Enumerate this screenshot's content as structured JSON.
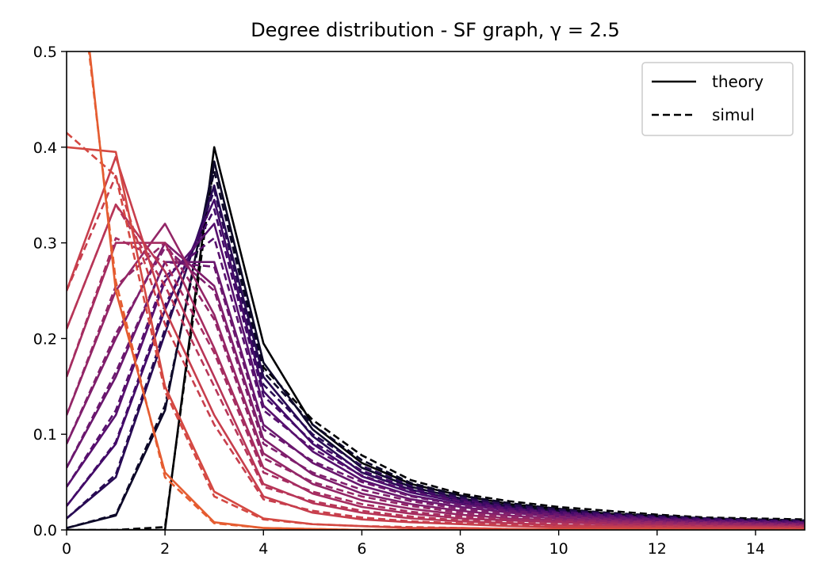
{
  "chart_data": {
    "type": "line",
    "title": "Degree distribution - SF graph, γ = 2.5",
    "xlabel": "",
    "ylabel": "",
    "xlim": [
      0,
      15
    ],
    "ylim": [
      0,
      0.5
    ],
    "xticks": [
      "0",
      "2",
      "4",
      "6",
      "8",
      "10",
      "12",
      "14"
    ],
    "yticks": [
      "0.0",
      "0.1",
      "0.2",
      "0.3",
      "0.4",
      "0.5"
    ],
    "grid": false,
    "legend": {
      "position": "upper right",
      "entries": [
        {
          "label": "theory",
          "style": "solid",
          "color": "#000000"
        },
        {
          "label": "simul",
          "style": "dashed",
          "color": "#000000"
        }
      ]
    },
    "colormap": "inferno",
    "x": [
      0,
      1,
      2,
      3,
      4,
      5,
      6,
      7,
      8,
      9,
      10,
      11,
      12,
      13,
      14,
      15
    ],
    "series": [
      {
        "style": "solid",
        "color": "#000004",
        "values": [
          0,
          0,
          0,
          0.4,
          0.195,
          0.11,
          0.07,
          0.048,
          0.036,
          0.027,
          0.022,
          0.017,
          0.014,
          0.012,
          0.01,
          0.009
        ]
      },
      {
        "style": "dashed",
        "color": "#000004",
        "values": [
          0,
          0,
          0.003,
          0.385,
          0.17,
          0.115,
          0.078,
          0.052,
          0.038,
          0.03,
          0.024,
          0.02,
          0.016,
          0.013,
          0.012,
          0.011
        ]
      },
      {
        "style": "solid",
        "color": "#0d0829",
        "values": [
          0.002,
          0.015,
          0.125,
          0.385,
          0.175,
          0.105,
          0.065,
          0.045,
          0.033,
          0.025,
          0.02,
          0.016,
          0.013,
          0.011,
          0.009,
          0.008
        ]
      },
      {
        "style": "dashed",
        "color": "#0d0829",
        "values": [
          0.002,
          0.016,
          0.13,
          0.375,
          0.165,
          0.11,
          0.073,
          0.049,
          0.036,
          0.028,
          0.022,
          0.018,
          0.015,
          0.012,
          0.011,
          0.01
        ]
      },
      {
        "style": "solid",
        "color": "#280b54",
        "values": [
          0.012,
          0.055,
          0.205,
          0.36,
          0.16,
          0.098,
          0.06,
          0.042,
          0.031,
          0.023,
          0.018,
          0.015,
          0.012,
          0.01,
          0.009,
          0.008
        ]
      },
      {
        "style": "dashed",
        "color": "#280b54",
        "values": [
          0.012,
          0.058,
          0.21,
          0.355,
          0.152,
          0.1,
          0.067,
          0.046,
          0.034,
          0.026,
          0.021,
          0.017,
          0.014,
          0.012,
          0.01,
          0.009
        ]
      },
      {
        "style": "solid",
        "color": "#420a68",
        "values": [
          0.025,
          0.09,
          0.23,
          0.345,
          0.145,
          0.09,
          0.056,
          0.039,
          0.029,
          0.022,
          0.017,
          0.014,
          0.011,
          0.01,
          0.008,
          0.007
        ]
      },
      {
        "style": "dashed",
        "color": "#420a68",
        "values": [
          0.025,
          0.092,
          0.235,
          0.335,
          0.14,
          0.092,
          0.062,
          0.043,
          0.032,
          0.024,
          0.019,
          0.016,
          0.013,
          0.011,
          0.01,
          0.009
        ]
      },
      {
        "style": "solid",
        "color": "#57106e",
        "values": [
          0.045,
          0.12,
          0.26,
          0.32,
          0.13,
          0.082,
          0.052,
          0.036,
          0.027,
          0.02,
          0.016,
          0.013,
          0.011,
          0.009,
          0.008,
          0.007
        ]
      },
      {
        "style": "dashed",
        "color": "#57106e",
        "values": [
          0.045,
          0.125,
          0.265,
          0.305,
          0.125,
          0.085,
          0.057,
          0.04,
          0.03,
          0.022,
          0.018,
          0.015,
          0.012,
          0.01,
          0.009,
          0.008
        ]
      },
      {
        "style": "solid",
        "color": "#6a176e",
        "values": [
          0.065,
          0.16,
          0.28,
          0.28,
          0.11,
          0.07,
          0.046,
          0.032,
          0.024,
          0.018,
          0.014,
          0.012,
          0.01,
          0.008,
          0.007,
          0.006
        ]
      },
      {
        "style": "dashed",
        "color": "#6a176e",
        "values": [
          0.065,
          0.165,
          0.28,
          0.275,
          0.105,
          0.072,
          0.05,
          0.035,
          0.026,
          0.02,
          0.016,
          0.013,
          0.011,
          0.009,
          0.008,
          0.007
        ]
      },
      {
        "style": "solid",
        "color": "#7f1e6c",
        "values": [
          0.09,
          0.2,
          0.3,
          0.255,
          0.095,
          0.058,
          0.038,
          0.027,
          0.02,
          0.015,
          0.012,
          0.01,
          0.008,
          0.007,
          0.006,
          0.005
        ]
      },
      {
        "style": "dashed",
        "color": "#7f1e6c",
        "values": [
          0.09,
          0.205,
          0.295,
          0.25,
          0.09,
          0.06,
          0.042,
          0.03,
          0.022,
          0.017,
          0.014,
          0.011,
          0.009,
          0.008,
          0.007,
          0.006
        ]
      },
      {
        "style": "solid",
        "color": "#932667",
        "values": [
          0.12,
          0.25,
          0.32,
          0.225,
          0.08,
          0.048,
          0.031,
          0.022,
          0.016,
          0.012,
          0.01,
          0.008,
          0.007,
          0.006,
          0.005,
          0.004
        ]
      },
      {
        "style": "dashed",
        "color": "#932667",
        "values": [
          0.12,
          0.255,
          0.3,
          0.22,
          0.075,
          0.05,
          0.035,
          0.025,
          0.018,
          0.014,
          0.011,
          0.009,
          0.008,
          0.007,
          0.006,
          0.005
        ]
      },
      {
        "style": "solid",
        "color": "#a52c60",
        "values": [
          0.16,
          0.3,
          0.3,
          0.19,
          0.065,
          0.038,
          0.024,
          0.017,
          0.012,
          0.01,
          0.008,
          0.006,
          0.005,
          0.004,
          0.004,
          0.003
        ]
      },
      {
        "style": "dashed",
        "color": "#a52c60",
        "values": [
          0.16,
          0.305,
          0.28,
          0.185,
          0.06,
          0.04,
          0.027,
          0.019,
          0.014,
          0.011,
          0.009,
          0.007,
          0.006,
          0.005,
          0.004,
          0.004
        ]
      },
      {
        "style": "solid",
        "color": "#b73557",
        "values": [
          0.21,
          0.34,
          0.27,
          0.16,
          0.048,
          0.028,
          0.018,
          0.012,
          0.009,
          0.007,
          0.005,
          0.004,
          0.004,
          0.003,
          0.003,
          0.002
        ]
      },
      {
        "style": "dashed",
        "color": "#b73557",
        "values": [
          0.21,
          0.34,
          0.255,
          0.15,
          0.045,
          0.03,
          0.02,
          0.014,
          0.01,
          0.008,
          0.006,
          0.005,
          0.004,
          0.004,
          0.003,
          0.003
        ]
      },
      {
        "style": "solid",
        "color": "#c73e4c",
        "values": [
          0.25,
          0.39,
          0.23,
          0.12,
          0.035,
          0.018,
          0.011,
          0.008,
          0.006,
          0.004,
          0.003,
          0.003,
          0.002,
          0.002,
          0.002,
          0.001
        ]
      },
      {
        "style": "dashed",
        "color": "#c73e4c",
        "values": [
          0.25,
          0.37,
          0.215,
          0.11,
          0.032,
          0.02,
          0.013,
          0.009,
          0.007,
          0.005,
          0.004,
          0.003,
          0.003,
          0.002,
          0.002,
          0.002
        ]
      },
      {
        "style": "solid",
        "color": "#d44842",
        "values": [
          0.4,
          0.395,
          0.15,
          0.04,
          0.012,
          0.006,
          0.004,
          0.002,
          0.002,
          0.001,
          0.001,
          0.001,
          0.001,
          0,
          0,
          0
        ]
      },
      {
        "style": "dashed",
        "color": "#d44842",
        "values": [
          0.415,
          0.37,
          0.145,
          0.035,
          0.011,
          0.006,
          0.004,
          0.003,
          0.002,
          0.001,
          0.001,
          0.001,
          0.001,
          0,
          0,
          0
        ]
      },
      {
        "style": "solid",
        "color": "#e55c30",
        "values": [
          0.72,
          0.25,
          0.06,
          0.008,
          0.002,
          0.001,
          0,
          0,
          0,
          0,
          0,
          0,
          0,
          0,
          0,
          0
        ]
      },
      {
        "style": "dashed",
        "color": "#e55c30",
        "values": [
          0.7,
          0.26,
          0.055,
          0.007,
          0.002,
          0.001,
          0,
          0,
          0,
          0,
          0,
          0,
          0,
          0,
          0,
          0
        ]
      }
    ]
  }
}
